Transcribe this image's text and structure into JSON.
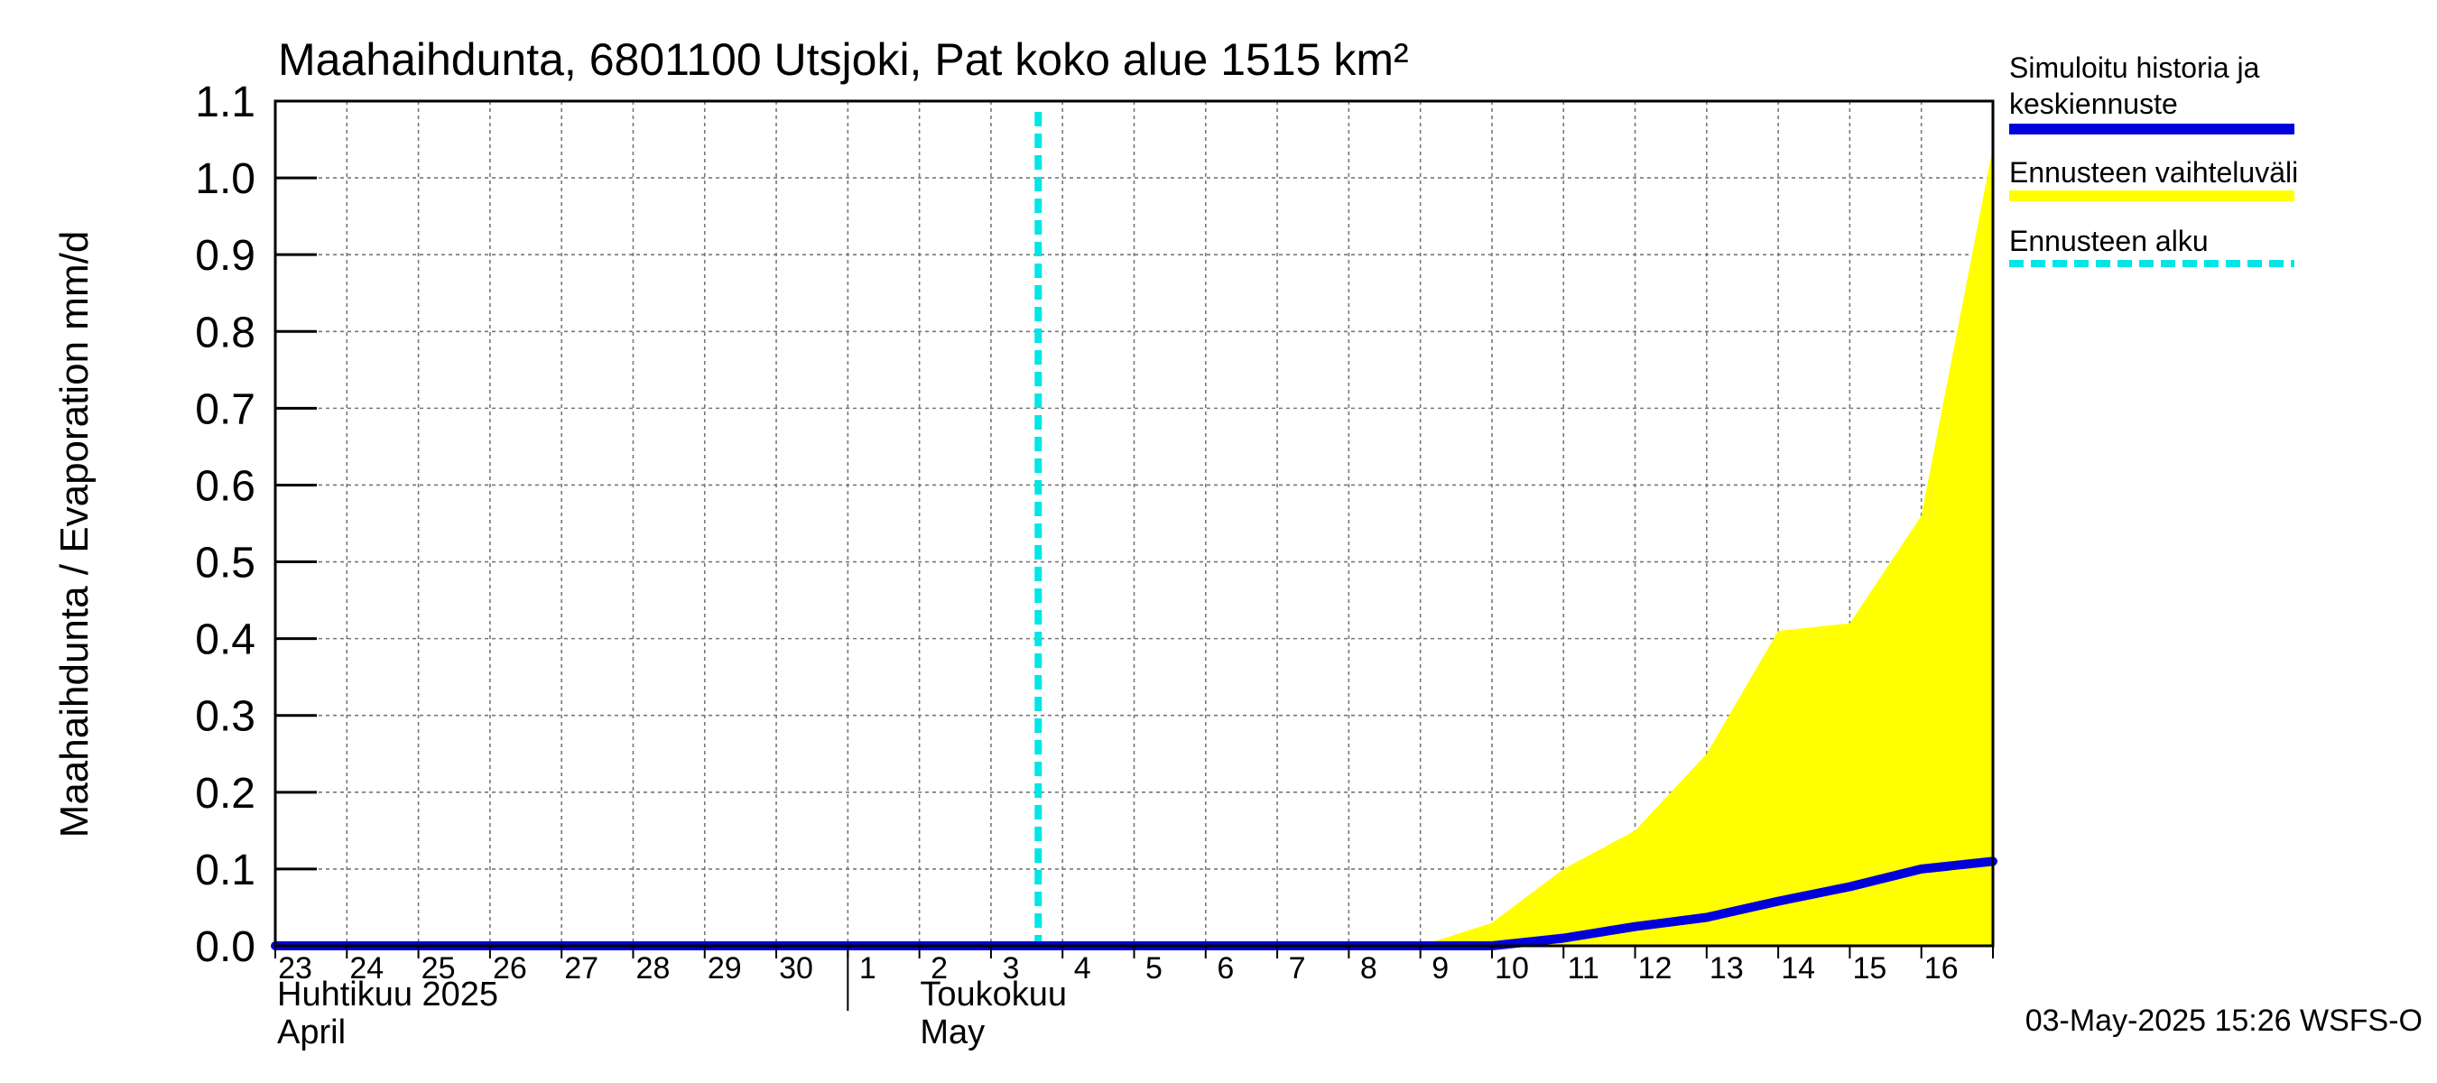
{
  "chart_data": {
    "type": "area",
    "title": "Maahaihdunta, 6801100 Utsjoki, Pat koko alue 1515 km²",
    "ylabel": "Maahaihdunta / Evaporation   mm/d",
    "ylim": [
      0,
      1.1
    ],
    "y_ticks": [
      "0.0",
      "0.1",
      "0.2",
      "0.3",
      "0.4",
      "0.5",
      "0.6",
      "0.7",
      "0.8",
      "0.9",
      "1.0",
      "1.1"
    ],
    "x_days": [
      "23",
      "24",
      "25",
      "26",
      "27",
      "28",
      "29",
      "30",
      "1",
      "2",
      "3",
      "4",
      "5",
      "6",
      "7",
      "8",
      "9",
      "10",
      "11",
      "12",
      "13",
      "14",
      "15",
      "16"
    ],
    "month_labels": [
      {
        "line1": "Huhtikuu  2025",
        "line2": "April"
      },
      {
        "line1": "Toukokuu",
        "line2": "May"
      }
    ],
    "grid": true,
    "forecast_start": "2025-05-03",
    "band": {
      "name": "Ennusteen vaihteluväli",
      "color": "#ffff00",
      "dates": [
        "2025-05-09",
        "2025-05-10",
        "2025-05-11",
        "2025-05-12",
        "2025-05-13",
        "2025-05-14",
        "2025-05-15",
        "2025-05-16",
        "2025-05-17"
      ],
      "upper": [
        0.0,
        0.03,
        0.1,
        0.15,
        0.25,
        0.41,
        0.42,
        0.56,
        1.04
      ],
      "lower": [
        0.0,
        0.0,
        0.0,
        0.0,
        0.0,
        0.0,
        0.0,
        0.0,
        0.0
      ]
    },
    "series": [
      {
        "name": "Simuloitu historia ja keskiennuste",
        "color": "#0000dd",
        "dates": [
          "2025-04-23",
          "2025-05-09",
          "2025-05-10",
          "2025-05-11",
          "2025-05-12",
          "2025-05-13",
          "2025-05-14",
          "2025-05-15",
          "2025-05-16",
          "2025-05-17"
        ],
        "values": [
          0.0,
          0.0,
          0.0,
          0.01,
          0.025,
          0.037,
          0.058,
          0.077,
          0.1,
          0.11
        ]
      }
    ],
    "legend": [
      {
        "line1": "Simuloitu historia ja",
        "line2": "keskiennuste",
        "color": "#0000dd",
        "style": "solid"
      },
      {
        "line1": "Ennusteen vaihteluväli",
        "line2": "",
        "color": "#ffff00",
        "style": "solid"
      },
      {
        "line1": "Ennusteen alku",
        "line2": "",
        "color": "#00e5e5",
        "style": "dashed"
      }
    ],
    "legend_position": "right",
    "footer": "03-May-2025 15:26 WSFS-O"
  }
}
